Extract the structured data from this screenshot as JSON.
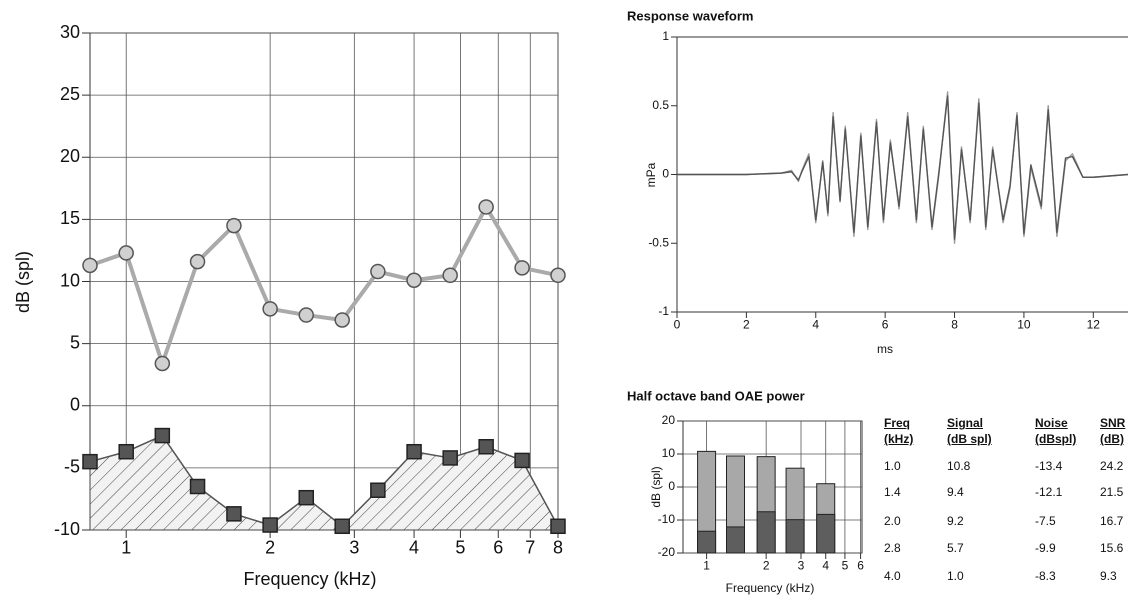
{
  "chart_data": [
    {
      "type": "line",
      "xlabel": "Frequency (kHz)",
      "ylabel": "dB (spl)",
      "log_x": true,
      "grid": true,
      "x": [
        0.84,
        1.0,
        1.19,
        1.41,
        1.68,
        2.0,
        2.38,
        2.83,
        3.36,
        4.0,
        4.76,
        5.66,
        6.73,
        8.0
      ],
      "series": [
        {
          "color": "#aaaaaa",
          "marker": "circle",
          "values": [
            11.3,
            12.3,
            3.4,
            11.6,
            14.5,
            7.8,
            7.3,
            6.9,
            10.8,
            10.1,
            10.5,
            16.0,
            11.1,
            10.5
          ]
        },
        {
          "color": "#555555",
          "marker": "square",
          "area": "hatched",
          "values": [
            -4.5,
            -3.7,
            -2.4,
            -6.5,
            -8.7,
            -9.6,
            -7.4,
            -9.7,
            -6.8,
            -3.7,
            -4.2,
            -3.3,
            -4.4,
            -9.7
          ]
        }
      ],
      "xlim": [
        0.84,
        8
      ],
      "xticks": [
        1,
        2,
        3,
        4,
        5,
        6,
        7,
        8
      ],
      "ylim": [
        -10,
        30
      ],
      "yticks": [
        -10,
        -5,
        0,
        5,
        10,
        15,
        20,
        25,
        30
      ]
    },
    {
      "type": "line",
      "title": "Response waveform",
      "xlabel": "ms",
      "ylabel": "mPa",
      "grid": false,
      "x": [
        0,
        1,
        2,
        3,
        3.3,
        3.5,
        3.6,
        3.8,
        4.0,
        4.2,
        4.35,
        4.5,
        4.7,
        4.85,
        5.1,
        5.3,
        5.5,
        5.75,
        5.95,
        6.15,
        6.4,
        6.65,
        6.9,
        7.1,
        7.35,
        7.55,
        7.8,
        8.0,
        8.2,
        8.45,
        8.7,
        8.9,
        9.1,
        9.4,
        9.6,
        9.8,
        10.0,
        10.2,
        10.5,
        10.7,
        10.95,
        11.2,
        11.4,
        11.7,
        12,
        13
      ],
      "series": [
        {
          "color": "#9a9a9a",
          "values": [
            0,
            0,
            0,
            0.01,
            0.03,
            -0.05,
            0.03,
            0.15,
            -0.35,
            0.1,
            -0.3,
            0.45,
            -0.2,
            0.35,
            -0.45,
            0.3,
            -0.4,
            0.4,
            -0.35,
            0.25,
            -0.25,
            0.45,
            -0.35,
            0.35,
            -0.4,
            0,
            0.6,
            -0.5,
            0.2,
            -0.35,
            0.55,
            -0.4,
            0.2,
            -0.35,
            -0.1,
            0.45,
            -0.45,
            0.05,
            -0.25,
            0.5,
            -0.45,
            0.1,
            0.15,
            -0.02,
            -0.02,
            0
          ]
        },
        {
          "color": "#555555",
          "values": [
            0,
            0,
            0,
            0.01,
            0.02,
            -0.04,
            0.02,
            0.13,
            -0.33,
            0.09,
            -0.28,
            0.42,
            -0.19,
            0.33,
            -0.42,
            0.28,
            -0.38,
            0.38,
            -0.33,
            0.23,
            -0.23,
            0.42,
            -0.33,
            0.33,
            -0.38,
            0.02,
            0.57,
            -0.47,
            0.18,
            -0.33,
            0.52,
            -0.38,
            0.18,
            -0.33,
            -0.08,
            0.43,
            -0.43,
            0.07,
            -0.23,
            0.47,
            -0.42,
            0.12,
            0.13,
            -0.02,
            -0.02,
            0
          ]
        }
      ],
      "xlim": [
        0,
        13
      ],
      "xticks": [
        0,
        2,
        4,
        6,
        8,
        10,
        12
      ],
      "ylim": [
        -1,
        1
      ],
      "yticks": [
        -1,
        -0.5,
        0,
        0.5,
        1
      ]
    },
    {
      "type": "bar",
      "title": "Half octave band OAE power",
      "xlabel": "Frequency (kHz)",
      "ylabel": "dB (spl)",
      "log_x": true,
      "grid": true,
      "x": [
        1.0,
        1.4,
        2.0,
        2.8,
        4.0
      ],
      "series": [
        {
          "color": "#a8a8a8",
          "values": [
            10.8,
            9.4,
            9.2,
            5.7,
            1.0
          ]
        },
        {
          "color": "#5e5e5e",
          "values": [
            -13.4,
            -12.1,
            -7.5,
            -9.9,
            -8.3
          ]
        }
      ],
      "xlim": [
        0.76,
        6.1
      ],
      "xticks": [
        1,
        2,
        3,
        4,
        5,
        6
      ],
      "ylim": [
        -20,
        20
      ],
      "yticks": [
        -20,
        -10,
        0,
        10,
        20
      ]
    }
  ],
  "table": {
    "header": [
      [
        "Freq",
        "(kHz)"
      ],
      [
        "Signal",
        "(dB spl)"
      ],
      [
        "Noise",
        "(dBspl)"
      ],
      [
        "SNR",
        "(dB)"
      ]
    ],
    "rows": [
      [
        "1.0",
        "10.8",
        "-13.4",
        "24.2"
      ],
      [
        "1.4",
        "9.4",
        "-12.1",
        "21.5"
      ],
      [
        "2.0",
        "9.2",
        "-7.5",
        "16.7"
      ],
      [
        "2.8",
        "5.7",
        "-9.9",
        "15.6"
      ],
      [
        "4.0",
        "1.0",
        "-8.3",
        "9.3"
      ]
    ]
  }
}
